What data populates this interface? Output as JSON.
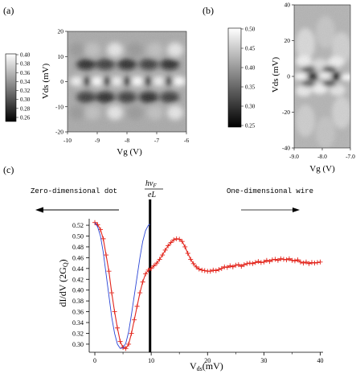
{
  "figure": {
    "panel_a": {
      "label": "(a)",
      "xlabel": "Vg (V)",
      "ylabel": "Vds (mV)",
      "xticks": [
        "-10",
        "-9",
        "-8",
        "-7",
        "-6"
      ],
      "yticks": [
        "20",
        "10",
        "0",
        "-10",
        "-20"
      ],
      "colorbar_ticks": [
        "0.40",
        "0.38",
        "0.36",
        "0.34",
        "0.32",
        "0.30",
        "0.28",
        "0.26"
      ]
    },
    "panel_b": {
      "label": "(b)",
      "xlabel": "Vg (V)",
      "ylabel": "Vds (mV)",
      "xticks": [
        "-9.0",
        "-8.0",
        "-7.0"
      ],
      "yticks": [
        "40",
        "20",
        "0",
        "-20",
        "-40"
      ],
      "colorbar_ticks": [
        "0.50",
        "0.45",
        "0.40",
        "0.35",
        "0.30",
        "0.25"
      ]
    },
    "panel_c": {
      "label": "(c)",
      "left_text": "Zero-dimensional dot",
      "right_text": "One-dimensional wire",
      "annotation_num": "hv",
      "annotation_sub": "F",
      "annotation_den": "eL",
      "ylabel": "dI/dV (2G",
      "ylabel_sub": "Q",
      "ylabel_end": ")",
      "xlabel": "V",
      "xlabel_sub": "ds",
      "xlabel_unit": "(mV)",
      "xticks": [
        "0",
        "10",
        "20",
        "30",
        "40"
      ],
      "yticks": [
        "0.52",
        "0.50",
        "0.48",
        "0.46",
        "0.44",
        "0.42",
        "0.40",
        "0.38",
        "0.36",
        "0.34",
        "0.32",
        "0.30"
      ]
    }
  },
  "chart_data": [
    {
      "type": "heatmap",
      "panel": "(a)",
      "xlabel": "Vg (V)",
      "ylabel": "Vds (mV)",
      "xlim": [
        -10,
        -6
      ],
      "ylim": [
        -20,
        20
      ],
      "colorbar_range": [
        0.26,
        0.4
      ]
    },
    {
      "type": "heatmap",
      "panel": "(b)",
      "xlabel": "Vg (V)",
      "ylabel": "Vds (mV)",
      "xlim": [
        -9.0,
        -7.0
      ],
      "ylim": [
        -40,
        40
      ],
      "colorbar_range": [
        0.25,
        0.5
      ]
    },
    {
      "type": "line",
      "panel": "(c)",
      "xlabel": "Vds (mV)",
      "ylabel": "dI/dV (2GQ)",
      "xlim": [
        -1,
        40.5
      ],
      "ylim": [
        0.285,
        0.532
      ],
      "vertical_line_x": 9.8,
      "series": [
        {
          "color": "#e2231a",
          "marker": "+",
          "x": [
            0,
            0.5,
            1,
            1.5,
            2,
            2.5,
            3,
            3.5,
            4,
            4.5,
            5,
            5.5,
            6,
            6.5,
            7,
            7.5,
            8,
            8.5,
            9,
            9.5,
            10,
            10.5,
            11,
            11.5,
            12,
            12.5,
            13,
            13.5,
            14,
            14.5,
            15,
            15.5,
            16,
            16.5,
            17,
            17.5,
            18,
            18.5,
            19,
            19.5,
            20,
            20.5,
            21,
            21.5,
            22,
            22.5,
            23,
            23.5,
            24,
            24.5,
            25,
            25.5,
            26,
            26.5,
            27,
            27.5,
            28,
            28.5,
            29,
            29.5,
            30,
            30.5,
            31,
            31.5,
            32,
            32.5,
            33,
            33.5,
            34,
            34.5,
            35,
            35.5,
            36,
            36.5,
            37,
            37.5,
            38,
            38.5,
            39,
            39.5,
            40
          ],
          "y": [
            0.525,
            0.521,
            0.512,
            0.495,
            0.465,
            0.435,
            0.395,
            0.36,
            0.33,
            0.305,
            0.294,
            0.292,
            0.3,
            0.32,
            0.345,
            0.37,
            0.395,
            0.415,
            0.43,
            0.437,
            0.44,
            0.445,
            0.45,
            0.457,
            0.465,
            0.474,
            0.482,
            0.488,
            0.493,
            0.495,
            0.494,
            0.49,
            0.48,
            0.468,
            0.457,
            0.449,
            0.443,
            0.439,
            0.437,
            0.436,
            0.435,
            0.435,
            0.437,
            0.436,
            0.438,
            0.44,
            0.443,
            0.442,
            0.445,
            0.443,
            0.446,
            0.447,
            0.444,
            0.447,
            0.449,
            0.45,
            0.449,
            0.451,
            0.453,
            0.451,
            0.452,
            0.455,
            0.453,
            0.456,
            0.457,
            0.455,
            0.458,
            0.457,
            0.456,
            0.458,
            0.455,
            0.454,
            0.456,
            0.452,
            0.45,
            0.452,
            0.449,
            0.451,
            0.45,
            0.451,
            0.452
          ]
        },
        {
          "color": "#2b46d6",
          "x": [
            0,
            0.5,
            1,
            1.5,
            2,
            2.5,
            3,
            3.5,
            4,
            4.5,
            5,
            5.5,
            6,
            6.5,
            7,
            7.5,
            8,
            8.5,
            9,
            9.5,
            9.8
          ],
          "y": [
            0.525,
            0.517,
            0.5,
            0.47,
            0.43,
            0.39,
            0.35,
            0.32,
            0.3,
            0.292,
            0.293,
            0.302,
            0.323,
            0.355,
            0.39,
            0.425,
            0.46,
            0.49,
            0.51,
            0.52,
            0.522
          ]
        }
      ]
    }
  ]
}
